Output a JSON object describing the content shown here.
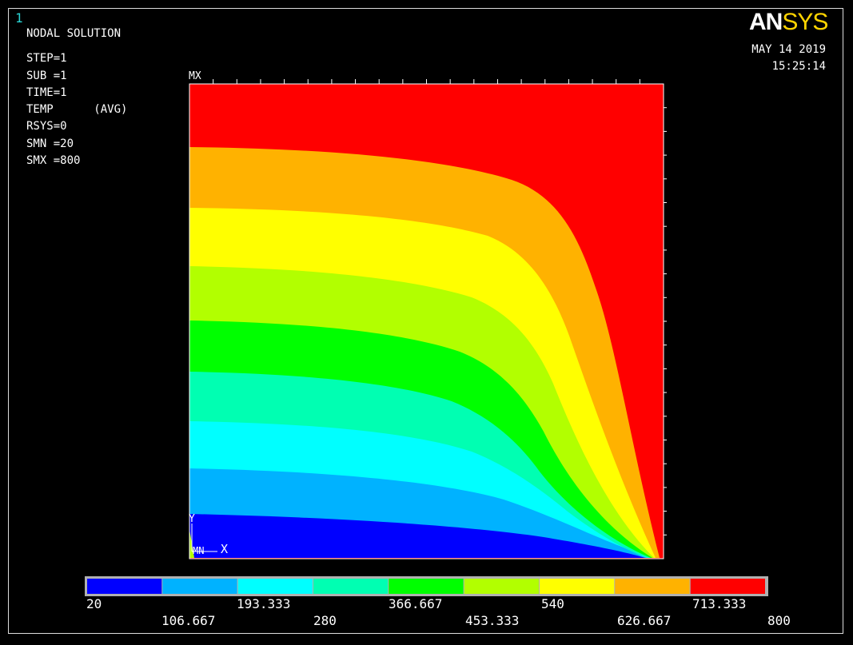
{
  "window_number": "1",
  "info_lines": [
    "NODAL SOLUTION",
    "STEP=1",
    "SUB =1",
    "TIME=1",
    "TEMP      (AVG)",
    "RSYS=0",
    "SMN =20",
    "SMX =800"
  ],
  "logo": {
    "an": "AN",
    "sys": "SYS"
  },
  "date": "MAY 14 2019",
  "time": "15:25:14",
  "mx_label": "MX",
  "mn_label": "MN",
  "axis": {
    "y": "Y",
    "x": "X"
  },
  "legend": {
    "colors": [
      "#0000ff",
      "#00b2ff",
      "#00ffff",
      "#00ffb2",
      "#00ff00",
      "#b2ff00",
      "#ffff00",
      "#ffb200",
      "#ff0000"
    ],
    "top_labels": [
      "20",
      "193.333",
      "366.667",
      "540",
      "713.333"
    ],
    "bottom_labels": [
      "106.667",
      "280",
      "453.333",
      "626.667",
      "800"
    ]
  },
  "colors": {
    "background": "#000000",
    "text": "#ffffff",
    "logo_accent": "#ffd400"
  }
}
